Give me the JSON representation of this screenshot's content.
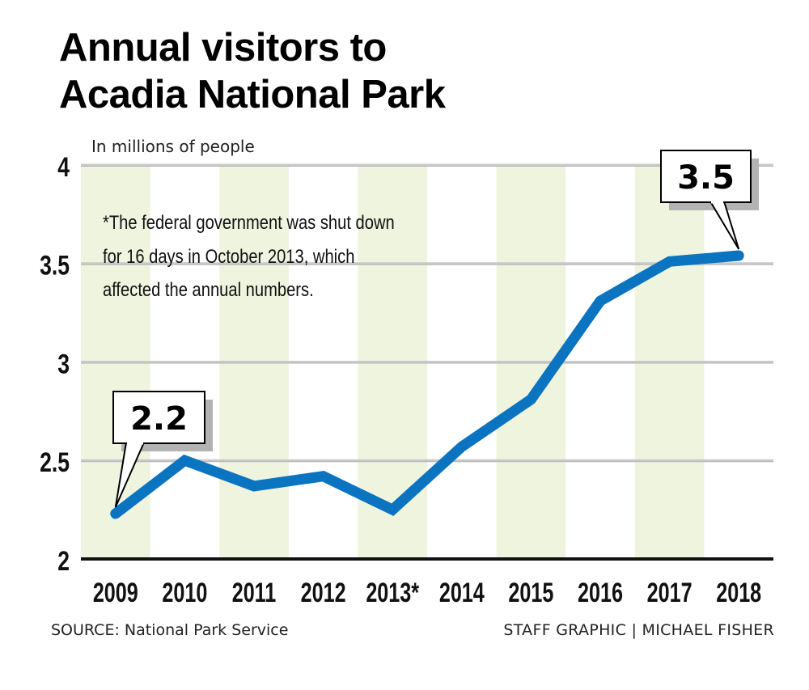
{
  "header": {
    "title_line1": "Annual visitors to",
    "title_line2": "Acadia National Park",
    "unit_label": "In millions of people"
  },
  "note": {
    "lines": [
      "*The federal government was shut down",
      "for 16 days in October 2013, which",
      "affected the annual numbers."
    ]
  },
  "callouts": [
    {
      "label": "2.2",
      "year": "2009"
    },
    {
      "label": "3.5",
      "year": "2018"
    }
  ],
  "footer": {
    "source": "SOURCE: National Park Service",
    "credit": "STAFF GRAPHIC | MICHAEL FISHER"
  },
  "colors": {
    "line": "#0b74c1",
    "band": "#eff4df",
    "grid": "#c9c9c9",
    "axis": "#111111"
  },
  "chart_data": {
    "type": "line",
    "title": "Annual visitors to Acadia National Park",
    "subtitle": "In millions of people",
    "xlabel": "",
    "ylabel": "In millions of people",
    "categories": [
      "2009",
      "2010",
      "2011",
      "2012",
      "2013*",
      "2014",
      "2015",
      "2016",
      "2017",
      "2018"
    ],
    "series": [
      {
        "name": "Annual visitors (millions)",
        "values": [
          2.23,
          2.5,
          2.37,
          2.42,
          2.25,
          2.57,
          2.81,
          3.31,
          3.51,
          3.54
        ]
      }
    ],
    "ylim": [
      2,
      4
    ],
    "yticks": [
      2,
      2.5,
      3,
      3.5,
      4
    ],
    "ytick_labels": [
      "2",
      "2.5",
      "3",
      "3.5",
      "4"
    ],
    "grid": true,
    "alternating_bands": true,
    "annotations": [
      {
        "text": "2.2",
        "x": "2009",
        "y": 2.23
      },
      {
        "text": "3.5",
        "x": "2018",
        "y": 3.54
      }
    ]
  }
}
